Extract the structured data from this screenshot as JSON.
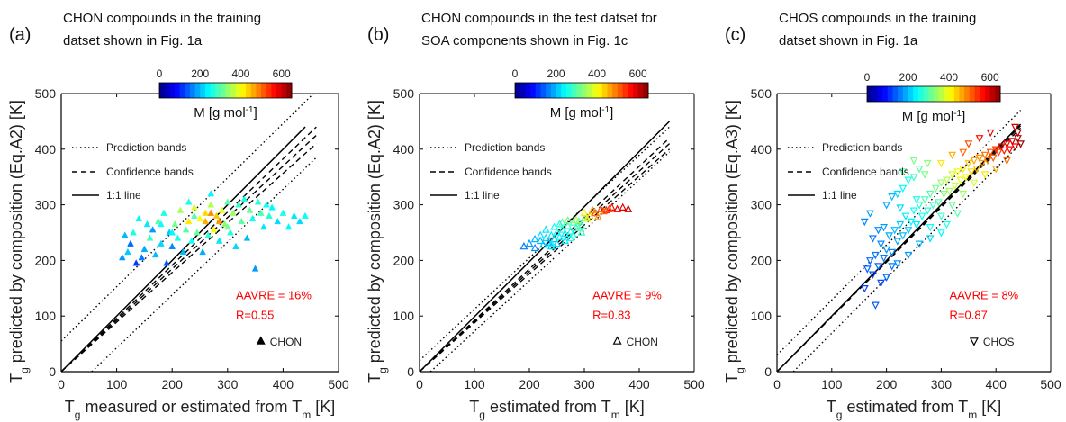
{
  "colors": {
    "annotation": "#ff0000",
    "axis": "#000000",
    "text": "#111111"
  },
  "colorbar": {
    "ticks": [
      "0",
      "200",
      "400",
      "600"
    ],
    "range": [
      0,
      650
    ],
    "colormap": "jet"
  },
  "legend_labels": {
    "prediction": "Prediction bands",
    "confidence": "Confidence bands",
    "oneone": "1:1 line"
  },
  "chart_data": [
    {
      "type": "scatter",
      "panel_label": "(a)",
      "title_lines": [
        "CHON compounds in the training",
        "datset shown in Fig. 1a"
      ],
      "xlabel": "T_g measured or estimated from T_m [K]",
      "ylabel": "T_g predicted by composition (Eq.A2) [K]",
      "colorbar_label": "M [g mol^-1]",
      "xlim": [
        0,
        500
      ],
      "ylim": [
        0,
        500
      ],
      "xticks": [
        "0",
        "100",
        "200",
        "300",
        "400",
        "500"
      ],
      "yticks": [
        "0",
        "100",
        "200",
        "300",
        "400",
        "500"
      ],
      "marker": "triangle-up-filled",
      "series_label": "CHON",
      "annotations": [
        "AAVRE = 16%",
        "R=0.55"
      ],
      "fit_line": {
        "x0": 0,
        "y0": 0,
        "x1": 440,
        "y1": 440
      },
      "confidence_bands": [
        [
          0,
          0,
          460,
          425
        ],
        [
          0,
          0,
          460,
          440
        ],
        [
          0,
          0,
          460,
          410
        ]
      ],
      "prediction_bands": [
        [
          0,
          55,
          455,
          500
        ],
        [
          55,
          0,
          460,
          385
        ]
      ],
      "points": [
        [
          110,
          205,
          180
        ],
        [
          115,
          245,
          200
        ],
        [
          120,
          215,
          210
        ],
        [
          125,
          230,
          150
        ],
        [
          130,
          250,
          260
        ],
        [
          135,
          195,
          120
        ],
        [
          140,
          275,
          240
        ],
        [
          145,
          205,
          160
        ],
        [
          150,
          220,
          190
        ],
        [
          155,
          265,
          230
        ],
        [
          160,
          240,
          280
        ],
        [
          165,
          255,
          180
        ],
        [
          170,
          210,
          200
        ],
        [
          175,
          270,
          300
        ],
        [
          180,
          230,
          220
        ],
        [
          185,
          285,
          260
        ],
        [
          190,
          195,
          140
        ],
        [
          195,
          250,
          210
        ],
        [
          200,
          225,
          170
        ],
        [
          205,
          265,
          320
        ],
        [
          210,
          240,
          260
        ],
        [
          215,
          290,
          350
        ],
        [
          220,
          215,
          200
        ],
        [
          225,
          255,
          300
        ],
        [
          230,
          270,
          420
        ],
        [
          235,
          235,
          250
        ],
        [
          240,
          295,
          380
        ],
        [
          245,
          250,
          310
        ],
        [
          250,
          275,
          400
        ],
        [
          255,
          215,
          190
        ],
        [
          260,
          285,
          430
        ],
        [
          265,
          245,
          270
        ],
        [
          270,
          300,
          360
        ],
        [
          275,
          255,
          410
        ],
        [
          280,
          280,
          440
        ],
        [
          285,
          235,
          230
        ],
        [
          290,
          290,
          390
        ],
        [
          295,
          265,
          330
        ],
        [
          300,
          305,
          300
        ],
        [
          305,
          250,
          260
        ],
        [
          310,
          285,
          340
        ],
        [
          315,
          225,
          220
        ],
        [
          320,
          300,
          280
        ],
        [
          325,
          270,
          300
        ],
        [
          330,
          310,
          260
        ],
        [
          335,
          240,
          200
        ],
        [
          340,
          290,
          310
        ],
        [
          345,
          275,
          250
        ],
        [
          350,
          185,
          180
        ],
        [
          355,
          305,
          270
        ],
        [
          360,
          285,
          290
        ],
        [
          365,
          260,
          230
        ],
        [
          370,
          300,
          250
        ],
        [
          375,
          280,
          270
        ],
        [
          380,
          295,
          240
        ],
        [
          390,
          270,
          220
        ],
        [
          400,
          285,
          260
        ],
        [
          410,
          260,
          240
        ],
        [
          420,
          280,
          230
        ],
        [
          430,
          270,
          220
        ],
        [
          440,
          280,
          250
        ],
        [
          260,
          270,
          460
        ],
        [
          270,
          285,
          480
        ],
        [
          285,
          270,
          470
        ],
        [
          240,
          280,
          300
        ],
        [
          300,
          260,
          320
        ],
        [
          200,
          250,
          240
        ],
        [
          180,
          265,
          250
        ],
        [
          230,
          305,
          260
        ],
        [
          270,
          320,
          240
        ]
      ]
    },
    {
      "type": "scatter",
      "panel_label": "(b)",
      "title_lines": [
        "CHON compounds in the test datset for",
        "SOA components shown in Fig. 1c"
      ],
      "xlabel": "T_g estimated from T_m [K]",
      "ylabel": "T_g predicted by composition (Eq.A2) [K]",
      "colorbar_label": "M [g mol^-1]",
      "xlim": [
        0,
        500
      ],
      "ylim": [
        0,
        500
      ],
      "xticks": [
        "0",
        "100",
        "200",
        "300",
        "400",
        "500"
      ],
      "yticks": [
        "0",
        "100",
        "200",
        "300",
        "400",
        "500"
      ],
      "marker": "triangle-up-open",
      "series_label": "CHON",
      "annotations": [
        "AAVRE = 9%",
        "R=0.83"
      ],
      "fit_line": {
        "x0": 0,
        "y0": 0,
        "x1": 455,
        "y1": 450
      },
      "confidence_bands": [
        [
          0,
          0,
          455,
          420
        ],
        [
          0,
          0,
          455,
          410
        ],
        [
          0,
          0,
          455,
          400
        ]
      ],
      "prediction_bands": [
        [
          0,
          20,
          455,
          440
        ],
        [
          20,
          0,
          455,
          395
        ]
      ],
      "points": [
        [
          190,
          225,
          160
        ],
        [
          200,
          230,
          180
        ],
        [
          210,
          222,
          170
        ],
        [
          220,
          235,
          200
        ],
        [
          225,
          228,
          210
        ],
        [
          230,
          240,
          220
        ],
        [
          235,
          232,
          190
        ],
        [
          240,
          245,
          230
        ],
        [
          245,
          238,
          200
        ],
        [
          250,
          250,
          250
        ],
        [
          255,
          242,
          240
        ],
        [
          260,
          255,
          260
        ],
        [
          265,
          248,
          230
        ],
        [
          270,
          262,
          280
        ],
        [
          275,
          252,
          260
        ],
        [
          280,
          268,
          290
        ],
        [
          285,
          258,
          270
        ],
        [
          290,
          270,
          300
        ],
        [
          295,
          262,
          280
        ],
        [
          300,
          275,
          310
        ],
        [
          240,
          225,
          210
        ],
        [
          250,
          230,
          220
        ],
        [
          265,
          235,
          230
        ],
        [
          280,
          245,
          250
        ],
        [
          295,
          250,
          270
        ],
        [
          260,
          268,
          300
        ],
        [
          270,
          272,
          320
        ],
        [
          300,
          285,
          420
        ],
        [
          310,
          280,
          440
        ],
        [
          315,
          290,
          470
        ],
        [
          320,
          285,
          500
        ],
        [
          330,
          292,
          520
        ],
        [
          340,
          290,
          540
        ],
        [
          350,
          295,
          560
        ],
        [
          360,
          292,
          580
        ],
        [
          370,
          295,
          590
        ],
        [
          380,
          292,
          600
        ],
        [
          325,
          278,
          480
        ],
        [
          335,
          288,
          510
        ],
        [
          345,
          292,
          530
        ],
        [
          220,
          245,
          220
        ],
        [
          230,
          255,
          230
        ],
        [
          245,
          260,
          250
        ],
        [
          255,
          265,
          260
        ],
        [
          210,
          238,
          200
        ],
        [
          285,
          272,
          350
        ],
        [
          305,
          275,
          380
        ],
        [
          240,
          230,
          240
        ],
        [
          275,
          240,
          260
        ],
        [
          290,
          258,
          300
        ]
      ]
    },
    {
      "type": "scatter",
      "panel_label": "(c)",
      "title_lines": [
        "CHOS compounds in the training",
        "datset shown in Fig. 1a"
      ],
      "xlabel": "T_g estimated from T_m [K]",
      "ylabel": "T_g predicted by composition (Eq.A3) [K]",
      "colorbar_label": "M [g mol^-1]",
      "xlim": [
        0,
        500
      ],
      "ylim": [
        0,
        500
      ],
      "xticks": [
        "0",
        "100",
        "200",
        "300",
        "400",
        "500"
      ],
      "yticks": [
        "0",
        "100",
        "200",
        "300",
        "400",
        "500"
      ],
      "marker": "triangle-down-open",
      "series_label": "CHOS",
      "annotations": [
        "AAVRE = 8%",
        "R=0.87"
      ],
      "fit_line": {
        "x0": 0,
        "y0": 0,
        "x1": 445,
        "y1": 445
      },
      "confidence_bands": [
        [
          0,
          0,
          445,
          442
        ],
        [
          0,
          0,
          445,
          438
        ]
      ],
      "prediction_bands": [
        [
          0,
          30,
          445,
          470
        ],
        [
          30,
          0,
          445,
          410
        ]
      ],
      "points": [
        [
          160,
          150,
          120
        ],
        [
          165,
          185,
          140
        ],
        [
          170,
          200,
          150
        ],
        [
          175,
          175,
          130
        ],
        [
          180,
          210,
          160
        ],
        [
          185,
          190,
          150
        ],
        [
          190,
          230,
          170
        ],
        [
          195,
          205,
          160
        ],
        [
          200,
          220,
          180
        ],
        [
          205,
          245,
          190
        ],
        [
          210,
          215,
          170
        ],
        [
          215,
          255,
          200
        ],
        [
          220,
          235,
          190
        ],
        [
          225,
          265,
          210
        ],
        [
          230,
          245,
          200
        ],
        [
          235,
          280,
          230
        ],
        [
          240,
          255,
          210
        ],
        [
          245,
          270,
          240
        ],
        [
          250,
          290,
          250
        ],
        [
          255,
          265,
          230
        ],
        [
          260,
          300,
          270
        ],
        [
          265,
          280,
          250
        ],
        [
          270,
          310,
          290
        ],
        [
          275,
          290,
          270
        ],
        [
          280,
          320,
          300
        ],
        [
          285,
          300,
          280
        ],
        [
          290,
          330,
          320
        ],
        [
          295,
          305,
          300
        ],
        [
          300,
          340,
          340
        ],
        [
          305,
          320,
          330
        ],
        [
          310,
          345,
          360
        ],
        [
          315,
          325,
          350
        ],
        [
          320,
          355,
          380
        ],
        [
          325,
          335,
          370
        ],
        [
          330,
          360,
          400
        ],
        [
          335,
          345,
          390
        ],
        [
          340,
          365,
          420
        ],
        [
          345,
          350,
          410
        ],
        [
          350,
          375,
          440
        ],
        [
          355,
          360,
          430
        ],
        [
          360,
          380,
          460
        ],
        [
          365,
          365,
          450
        ],
        [
          370,
          385,
          480
        ],
        [
          375,
          375,
          470
        ],
        [
          380,
          390,
          500
        ],
        [
          385,
          380,
          490
        ],
        [
          390,
          395,
          520
        ],
        [
          395,
          385,
          510
        ],
        [
          400,
          400,
          540
        ],
        [
          405,
          395,
          530
        ],
        [
          410,
          405,
          560
        ],
        [
          415,
          398,
          550
        ],
        [
          420,
          410,
          580
        ],
        [
          425,
          400,
          570
        ],
        [
          430,
          415,
          600
        ],
        [
          435,
          405,
          590
        ],
        [
          440,
          420,
          610
        ],
        [
          440,
          430,
          620
        ],
        [
          435,
          440,
          600
        ],
        [
          445,
          410,
          630
        ],
        [
          180,
          120,
          140
        ],
        [
          190,
          160,
          130
        ],
        [
          200,
          170,
          150
        ],
        [
          210,
          190,
          160
        ],
        [
          175,
          240,
          160
        ],
        [
          185,
          255,
          170
        ],
        [
          195,
          260,
          180
        ],
        [
          160,
          270,
          170
        ],
        [
          170,
          285,
          180
        ],
        [
          200,
          300,
          190
        ],
        [
          210,
          315,
          200
        ],
        [
          220,
          320,
          220
        ],
        [
          230,
          330,
          240
        ],
        [
          240,
          345,
          260
        ],
        [
          250,
          350,
          280
        ],
        [
          260,
          365,
          300
        ],
        [
          270,
          355,
          320
        ],
        [
          225,
          295,
          220
        ],
        [
          255,
          310,
          260
        ],
        [
          280,
          260,
          250
        ],
        [
          300,
          280,
          280
        ],
        [
          320,
          300,
          310
        ],
        [
          340,
          320,
          340
        ],
        [
          360,
          340,
          380
        ],
        [
          380,
          355,
          420
        ],
        [
          400,
          365,
          460
        ],
        [
          420,
          380,
          500
        ],
        [
          350,
          410,
          520
        ],
        [
          370,
          420,
          560
        ],
        [
          390,
          430,
          590
        ],
        [
          300,
          375,
          420
        ],
        [
          320,
          390,
          460
        ],
        [
          340,
          395,
          500
        ],
        [
          260,
          230,
          200
        ],
        [
          280,
          240,
          220
        ],
        [
          300,
          250,
          240
        ],
        [
          240,
          210,
          180
        ],
        [
          220,
          195,
          170
        ],
        [
          310,
          265,
          260
        ],
        [
          330,
          285,
          300
        ],
        [
          250,
          380,
          320
        ],
        [
          230,
          360,
          300
        ],
        [
          275,
          375,
          330
        ]
      ]
    }
  ]
}
